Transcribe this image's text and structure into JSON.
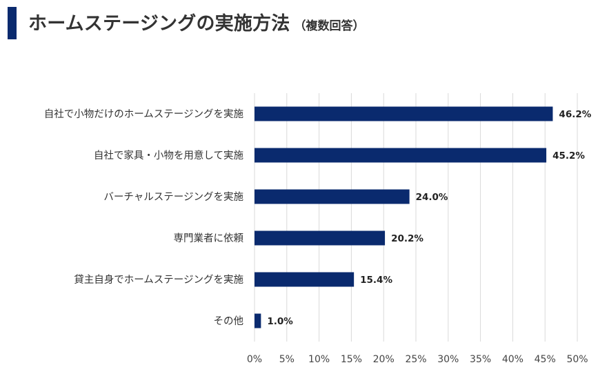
{
  "header": {
    "title": "ホームステージングの実施方法",
    "subtitle": "（複数回答）",
    "accent_color": "#0a2a6e"
  },
  "chart_data": {
    "type": "bar",
    "orientation": "horizontal",
    "categories": [
      "自社で小物だけのホームステージングを実施",
      "自社で家具・小物を用意して実施",
      "バーチャルステージングを実施",
      "専門業者に依頼",
      "貸主自身でホームステージングを実施",
      "その他"
    ],
    "values": [
      46.2,
      45.2,
      24.0,
      20.2,
      15.4,
      1.0
    ],
    "value_labels": [
      "46.2%",
      "45.2%",
      "24.0%",
      "20.2%",
      "15.4%",
      "1.0%"
    ],
    "xlim": [
      0,
      50
    ],
    "xticks": [
      0,
      5,
      10,
      15,
      20,
      25,
      30,
      35,
      40,
      45,
      50
    ],
    "xtick_labels": [
      "0%",
      "5%",
      "10%",
      "15%",
      "20%",
      "25%",
      "30%",
      "35%",
      "40%",
      "45%",
      "50%"
    ],
    "grid": true,
    "bar_color": "#0a2a6e",
    "grid_color": "#d9d9d9",
    "title": "ホームステージングの実施方法",
    "xlabel": "",
    "ylabel": ""
  }
}
